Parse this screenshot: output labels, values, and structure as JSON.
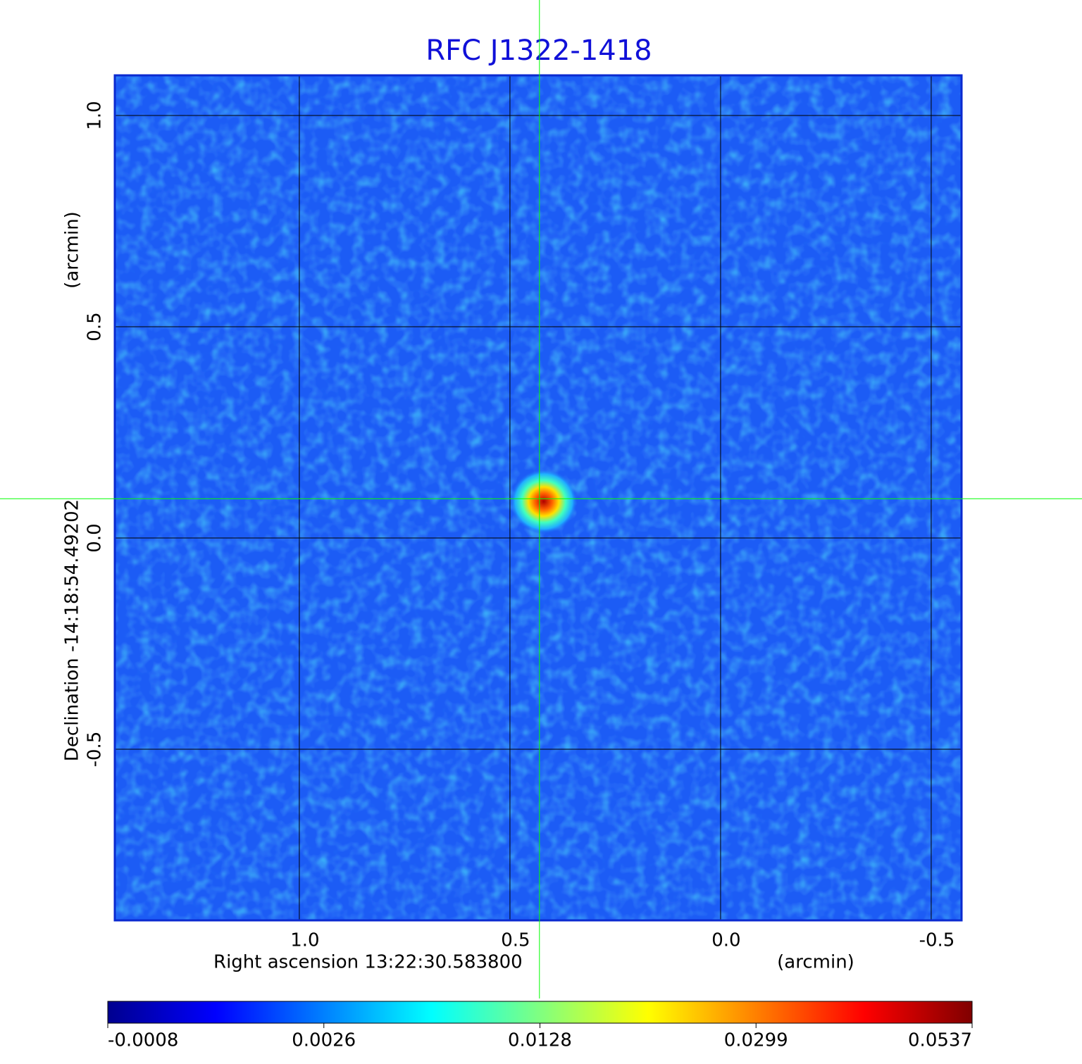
{
  "chart_data": {
    "type": "image",
    "title": "RFC J1322-1418",
    "x_label": "Right ascension  13:22:30.583800",
    "x_unit": "(arcmin)",
    "y_label": "Declination  -14:18:54.49202",
    "y_unit": "(arcmin)",
    "xlim": [
      1.438,
      -0.572
    ],
    "ylim": [
      -0.905,
      1.095
    ],
    "xticks": [
      {
        "value": 1,
        "label": "1.0"
      },
      0.5,
      {
        "value": 0,
        "label": "0.0"
      },
      -0.5
    ],
    "yticks": [
      {
        "value": 1,
        "label": "1.0"
      },
      0.5,
      {
        "value": 0,
        "label": "0.0"
      },
      -0.5
    ],
    "grid": true,
    "colormap": "jet",
    "crosshair": {
      "x": 0.43,
      "y": 0.093,
      "color": "#00ff00"
    },
    "colorbar_ticks": [
      -0.0008,
      0.0026,
      0.0128,
      0.0299,
      0.0537
    ]
  }
}
